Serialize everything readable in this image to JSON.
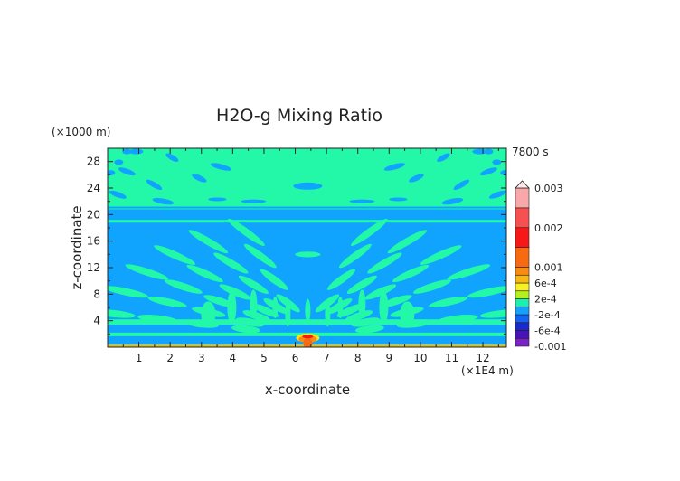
{
  "chart_data": {
    "type": "heatmap",
    "title": "H2O-g Mixing Ratio",
    "xlabel": "x-coordinate",
    "ylabel": "z-coordinate",
    "x_unit": "(×1E4 m)",
    "y_unit": "(×1000 m)",
    "time_label": "7800 s",
    "xlim": [
      0,
      12.75
    ],
    "ylim": [
      0,
      30
    ],
    "x_ticks": [
      "1",
      "2",
      "3",
      "4",
      "5",
      "6",
      "7",
      "8",
      "9",
      "10",
      "11",
      "12"
    ],
    "y_ticks": [
      "4",
      "8",
      "12",
      "16",
      "20",
      "24",
      "28"
    ],
    "colorbar": {
      "levels": [
        -0.001,
        -0.0008,
        -0.0006,
        -0.0004,
        -0.0002,
        0,
        0.0002,
        0.0004,
        0.0006,
        0.0008,
        0.001,
        0.0015,
        0.002,
        0.0025,
        0.003
      ],
      "colors": [
        "#7a22c8",
        "#4a14b4",
        "#1a2ad0",
        "#1464f0",
        "#14a0ff",
        "#1cf0b0",
        "#b4f020",
        "#f8f020",
        "#f8b810",
        "#f88c10",
        "#f86a10",
        "#f81818",
        "#f85050",
        "#f8a8a8"
      ],
      "labels": [
        {
          "text": "0.003",
          "value": 0.003
        },
        {
          "text": "0.002",
          "value": 0.002
        },
        {
          "text": "0.001",
          "value": 0.001
        },
        {
          "text": "6e-4",
          "value": 0.0006
        },
        {
          "text": "2e-4",
          "value": 0.0002
        },
        {
          "text": "-2e-4",
          "value": -0.0002
        },
        {
          "text": "-6e-4",
          "value": -0.0006
        },
        {
          "text": "-0.001",
          "value": -0.001
        }
      ]
    },
    "field_description_colors": {
      "background": "#10a4ff",
      "positive": "#22f8a8"
    }
  }
}
